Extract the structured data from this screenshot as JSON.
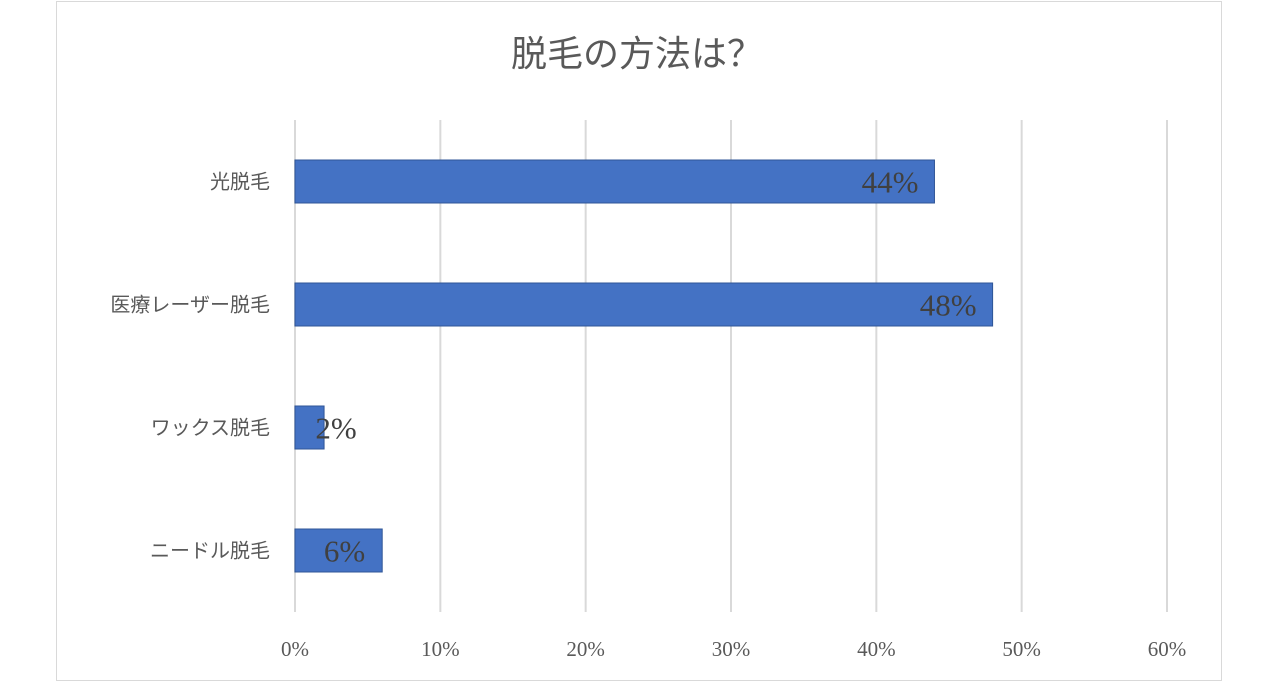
{
  "chart_data": {
    "type": "bar",
    "orientation": "horizontal",
    "title": "脱毛の方法は？",
    "categories": [
      "光脱毛",
      "医療レーザー脱毛",
      "ワックス脱毛",
      "ニードル脱毛"
    ],
    "values": [
      44,
      48,
      2,
      6
    ],
    "data_labels": [
      "44%",
      "48%",
      "2%",
      "6%"
    ],
    "xlim": [
      0,
      60
    ],
    "xticks": [
      0,
      10,
      20,
      30,
      40,
      50,
      60
    ],
    "xtick_labels": [
      "0%",
      "10%",
      "20%",
      "30%",
      "40%",
      "50%",
      "60%"
    ],
    "grid": "vertical",
    "legend": "none",
    "bar_color": "#4472c4"
  }
}
